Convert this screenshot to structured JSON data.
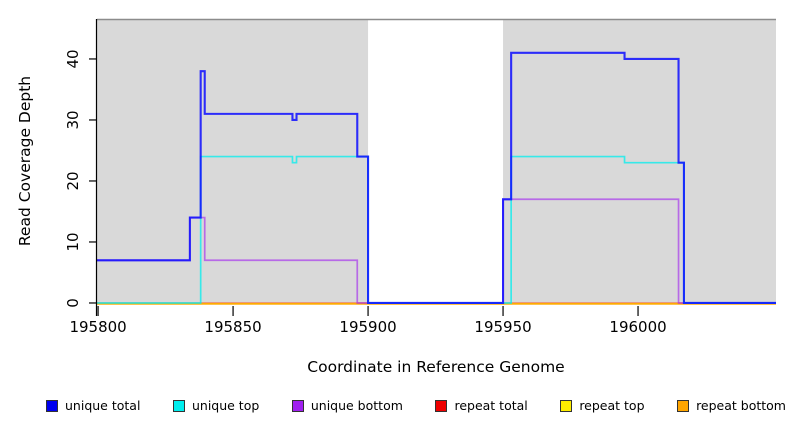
{
  "chart_data": {
    "type": "line",
    "title": "",
    "xlabel": "Coordinate in Reference Genome",
    "ylabel": "Read Coverage Depth",
    "xlim": [
      195799.6,
      196051.1
    ],
    "ylim": [
      -1.15,
      46.55
    ],
    "x_ticks": [
      195800,
      195850,
      195900,
      195950,
      196000
    ],
    "y_ticks": [
      0,
      10,
      20,
      30,
      40
    ],
    "grid": "off",
    "legend_position": "bottom",
    "band_color": "#d9d9d9",
    "top_border_color": "#8c8c8c",
    "plot_bands": [
      {
        "from": 195799.6,
        "to": 195900,
        "note": "covered region"
      },
      {
        "from": 195950,
        "to": 196051.1,
        "note": "covered region"
      }
    ],
    "series": [
      {
        "name": "repeat total",
        "color": "#ff0000",
        "opacity": 0.8,
        "lw": 1.5,
        "steps": [
          [
            195799.6,
            0
          ],
          [
            196051.1,
            0
          ]
        ]
      },
      {
        "name": "repeat top",
        "color": "#ffff00",
        "opacity": 0.85,
        "lw": 1.5,
        "steps": [
          [
            195799.6,
            0
          ],
          [
            196051.1,
            0
          ]
        ]
      },
      {
        "name": "repeat bottom",
        "color": "#ffa500",
        "opacity": 0.9,
        "lw": 1.7,
        "steps": [
          [
            195799.6,
            0
          ],
          [
            196051.1,
            0
          ]
        ]
      },
      {
        "name": "unique bottom",
        "color": "#a020f0",
        "opacity": 0.6,
        "lw": 1.7,
        "steps": [
          [
            195799.6,
            7
          ],
          [
            195834,
            14
          ],
          [
            195839.5,
            7
          ],
          [
            195896,
            0
          ],
          [
            195950,
            17
          ],
          [
            196015,
            0
          ],
          [
            196051.1,
            0
          ]
        ]
      },
      {
        "name": "unique top",
        "color": "#00eeee",
        "opacity": 0.75,
        "lw": 1.7,
        "steps": [
          [
            195799.6,
            0
          ],
          [
            195838,
            24
          ],
          [
            195872,
            23
          ],
          [
            195873.5,
            24
          ],
          [
            195900,
            0
          ],
          [
            195953,
            24
          ],
          [
            195995,
            23
          ],
          [
            196017,
            0
          ],
          [
            196051.1,
            0
          ]
        ]
      },
      {
        "name": "unique total",
        "color": "#0d0dff",
        "opacity": 0.85,
        "lw": 2.1,
        "steps": [
          [
            195799.6,
            7
          ],
          [
            195834,
            14
          ],
          [
            195838,
            38
          ],
          [
            195839.5,
            31
          ],
          [
            195872,
            30
          ],
          [
            195873.5,
            31
          ],
          [
            195896,
            24
          ],
          [
            195900,
            0
          ],
          [
            195950,
            17
          ],
          [
            195953,
            41
          ],
          [
            195995,
            40
          ],
          [
            196015,
            23
          ],
          [
            196017,
            0
          ],
          [
            196051.1,
            0
          ]
        ]
      }
    ],
    "legend": [
      {
        "label": "unique total",
        "color": "#0000ee"
      },
      {
        "label": "unique top",
        "color": "#00eeee"
      },
      {
        "label": "unique bottom",
        "color": "#a020f0"
      },
      {
        "label": "repeat total",
        "color": "#ee0000"
      },
      {
        "label": "repeat top",
        "color": "#ffee00"
      },
      {
        "label": "repeat bottom",
        "color": "#ffa500"
      }
    ]
  }
}
